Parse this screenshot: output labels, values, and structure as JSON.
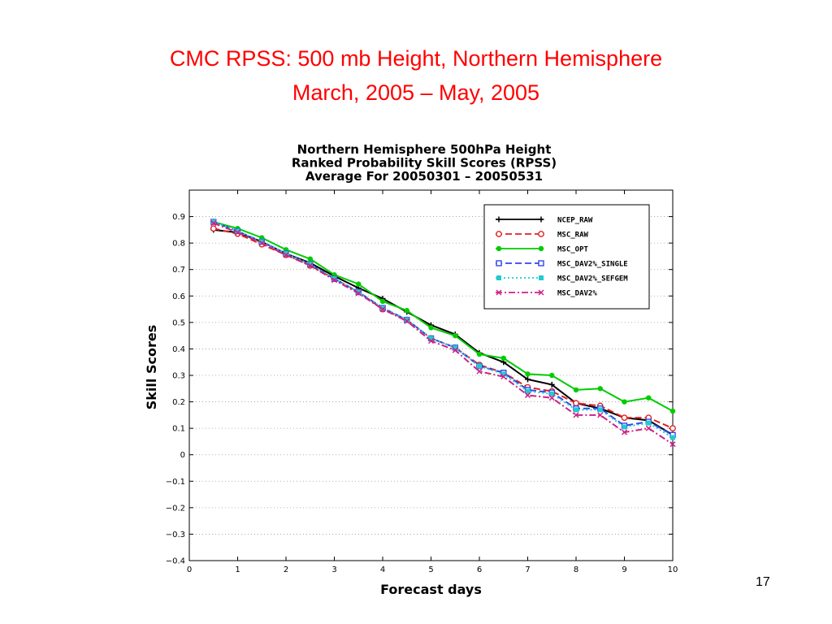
{
  "slide": {
    "title_line1": "CMC RPSS:  500 mb Height, Northern Hemisphere",
    "title_line2": "March, 2005 – May, 2005",
    "page_number": "17"
  },
  "chart_data": {
    "type": "line",
    "title": [
      "Northern Hemisphere 500hPa Height",
      "Ranked Probability Skill Scores (RPSS)",
      "Average For 20050301 – 20050531"
    ],
    "xlabel": "Forecast days",
    "ylabel": "Skill Scores",
    "xlim": [
      0,
      10
    ],
    "ylim": [
      -0.4,
      1.0
    ],
    "xticks": [
      0,
      1,
      2,
      3,
      4,
      5,
      6,
      7,
      8,
      9,
      10
    ],
    "xtick_labels": [
      "0",
      "1",
      "2",
      "3",
      "4",
      "5",
      "6",
      "7",
      "8",
      "9",
      "10"
    ],
    "yticks": [
      -0.4,
      -0.3,
      -0.2,
      -0.1,
      0,
      0.1,
      0.2,
      0.3,
      0.4,
      0.5,
      0.6,
      0.7,
      0.8,
      0.9
    ],
    "ytick_labels": [
      "−0.4",
      "−0.3",
      "−0.2",
      "−0.1",
      "0",
      "0.1",
      "0.2",
      "0.3",
      "0.4",
      "0.5",
      "0.6",
      "0.7",
      "0.8",
      "0.9"
    ],
    "grid": "horizontal dotted",
    "legend_position": "top-right",
    "x": [
      0.5,
      1,
      1.5,
      2,
      2.5,
      3,
      3.5,
      4,
      4.5,
      5,
      5.5,
      6,
      6.5,
      7,
      7.5,
      8,
      8.5,
      9,
      9.5,
      10
    ],
    "series": [
      {
        "name": "NCEP_RAW",
        "color": "#000000",
        "marker": "plus",
        "dash": "",
        "values": [
          0.85,
          0.84,
          0.805,
          0.76,
          0.725,
          0.675,
          0.63,
          0.59,
          0.54,
          0.49,
          0.455,
          0.385,
          0.35,
          0.285,
          0.265,
          0.195,
          0.175,
          0.14,
          0.13,
          0.075
        ]
      },
      {
        "name": "MSC_RAW",
        "color": "#dd2222",
        "marker": "circle",
        "dash": "8,4",
        "values": [
          0.855,
          0.835,
          0.795,
          0.755,
          0.715,
          0.665,
          0.615,
          0.55,
          0.51,
          0.44,
          0.405,
          0.34,
          0.31,
          0.255,
          0.24,
          0.195,
          0.185,
          0.14,
          0.14,
          0.1
        ]
      },
      {
        "name": "MSC_OPT",
        "color": "#00cc00",
        "marker": "dot",
        "dash": "",
        "values": [
          0.88,
          0.855,
          0.82,
          0.775,
          0.74,
          0.68,
          0.645,
          0.58,
          0.545,
          0.48,
          0.45,
          0.38,
          0.365,
          0.305,
          0.3,
          0.245,
          0.25,
          0.2,
          0.215,
          0.165
        ]
      },
      {
        "name": "MSC_DAV2%_SINGLE",
        "color": "#3344ee",
        "marker": "square-open",
        "dash": "8,4",
        "values": [
          0.88,
          0.845,
          0.805,
          0.76,
          0.72,
          0.665,
          0.615,
          0.555,
          0.51,
          0.44,
          0.405,
          0.335,
          0.31,
          0.245,
          0.235,
          0.175,
          0.175,
          0.11,
          0.125,
          0.075
        ]
      },
      {
        "name": "MSC_DAV2%_SEFGEM",
        "color": "#22cccc",
        "marker": "square-filled",
        "dash": "2,3",
        "values": [
          0.88,
          0.845,
          0.805,
          0.76,
          0.72,
          0.665,
          0.615,
          0.555,
          0.51,
          0.44,
          0.405,
          0.335,
          0.305,
          0.24,
          0.23,
          0.17,
          0.17,
          0.105,
          0.12,
          0.065
        ]
      },
      {
        "name": "MSC_DAV2%",
        "color": "#cc2288",
        "marker": "x",
        "dash": "8,3,2,3",
        "values": [
          0.875,
          0.84,
          0.8,
          0.755,
          0.715,
          0.66,
          0.61,
          0.55,
          0.505,
          0.43,
          0.395,
          0.315,
          0.295,
          0.225,
          0.215,
          0.15,
          0.15,
          0.085,
          0.1,
          0.04
        ]
      }
    ]
  }
}
